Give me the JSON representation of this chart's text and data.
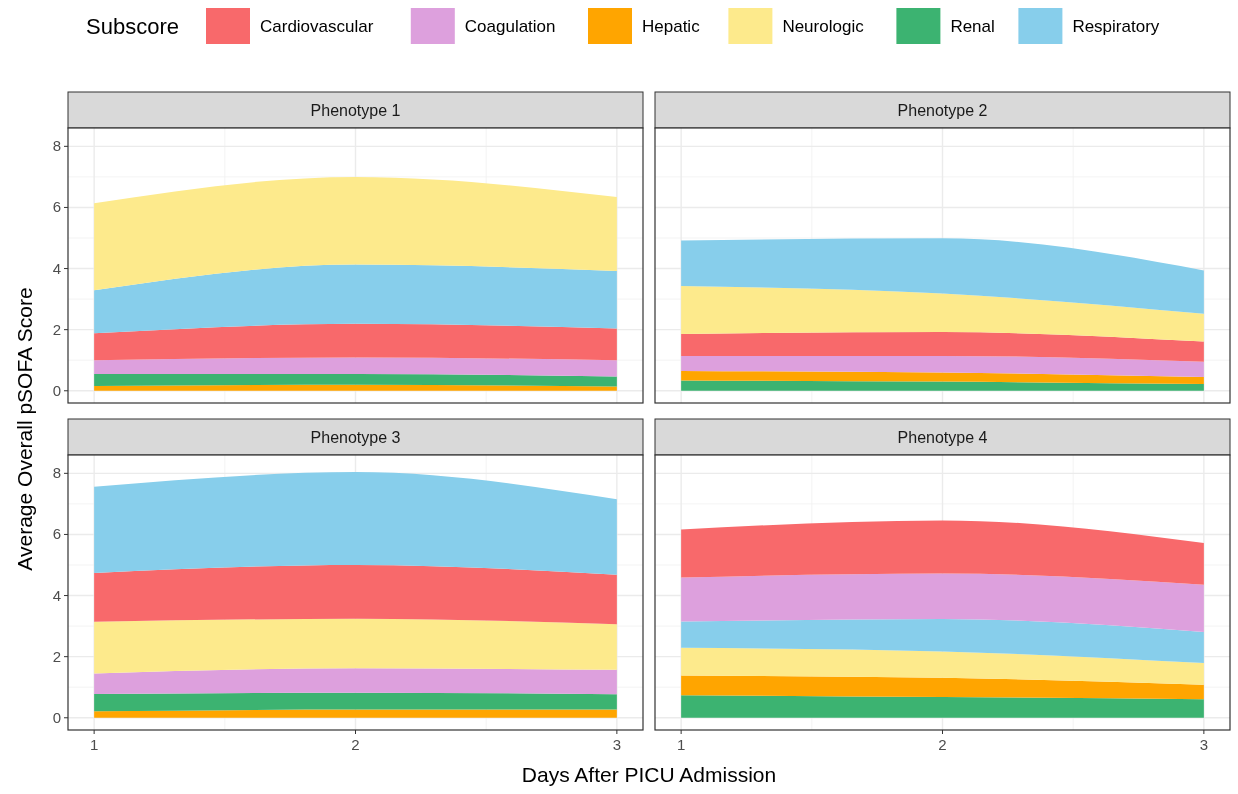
{
  "chart_data": [
    {
      "type": "area",
      "stacked": true,
      "title": "Phenotype 1",
      "ylabel": "Average Overall pSOFA Score",
      "legend_title": "Subscore",
      "legend": "top",
      "grid": true,
      "tick_labels": "y",
      "x": [
        1,
        2,
        3
      ],
      "xlim": [
        0.9,
        3.1
      ],
      "xticks": [
        1,
        2,
        3
      ],
      "ylim": [
        -0.4,
        8.6
      ],
      "yticks": [
        0,
        2,
        4,
        6,
        8
      ],
      "series": [
        {
          "name": "Hepatic",
          "color": "#ffa500",
          "values": [
            0.16,
            0.2,
            0.14
          ]
        },
        {
          "name": "Renal",
          "color": "#3cb371",
          "values": [
            0.39,
            0.35,
            0.33
          ]
        },
        {
          "name": "Coagulation",
          "color": "#dda0dd",
          "values": [
            0.45,
            0.54,
            0.53
          ]
        },
        {
          "name": "Cardiovascular",
          "color": "#f8696b",
          "values": [
            0.88,
            1.1,
            1.04
          ]
        },
        {
          "name": "Respiratory",
          "color": "#87ceeb",
          "values": [
            1.41,
            1.94,
            1.88
          ]
        },
        {
          "name": "Neurologic",
          "color": "#fdea8c",
          "values": [
            2.85,
            2.87,
            2.42
          ]
        }
      ]
    },
    {
      "type": "area",
      "stacked": true,
      "title": "Phenotype 2",
      "grid": true,
      "tick_labels": false,
      "x": [
        1,
        2,
        3
      ],
      "xlim": [
        0.9,
        3.1
      ],
      "xticks": [
        1,
        2,
        3
      ],
      "ylim": [
        -0.4,
        8.6
      ],
      "yticks": [
        0,
        2,
        4,
        6,
        8
      ],
      "series": [
        {
          "color": "#3cb371",
          "values": [
            0.34,
            0.3,
            0.22
          ]
        },
        {
          "color": "#ffa500",
          "values": [
            0.31,
            0.3,
            0.23
          ]
        },
        {
          "color": "#dda0dd",
          "values": [
            0.49,
            0.54,
            0.5
          ]
        },
        {
          "color": "#f8696b",
          "values": [
            0.72,
            0.78,
            0.66
          ]
        },
        {
          "color": "#fdea8c",
          "values": [
            1.57,
            1.26,
            0.91
          ]
        },
        {
          "color": "#87ceeb",
          "values": [
            1.49,
            1.81,
            1.42
          ]
        }
      ]
    },
    {
      "type": "area",
      "stacked": true,
      "title": "Phenotype 3",
      "xlabel": "Days After PICU Admission",
      "grid": true,
      "x": [
        1,
        2,
        3
      ],
      "xlim": [
        0.9,
        3.1
      ],
      "xticks": [
        1,
        2,
        3
      ],
      "ylim": [
        -0.4,
        8.6
      ],
      "yticks": [
        0,
        2,
        4,
        6,
        8
      ],
      "series": [
        {
          "color": "#ffa500",
          "values": [
            0.21,
            0.27,
            0.27
          ]
        },
        {
          "color": "#3cb371",
          "values": [
            0.57,
            0.55,
            0.5
          ]
        },
        {
          "color": "#dda0dd",
          "values": [
            0.67,
            0.8,
            0.8
          ]
        },
        {
          "color": "#fdea8c",
          "values": [
            1.69,
            1.62,
            1.49
          ]
        },
        {
          "color": "#f8696b",
          "values": [
            1.6,
            1.76,
            1.62
          ]
        },
        {
          "color": "#87ceeb",
          "values": [
            2.82,
            3.04,
            2.47
          ]
        }
      ]
    },
    {
      "type": "area",
      "stacked": true,
      "title": "Phenotype 4",
      "grid": true,
      "tick_labels": "x",
      "x": [
        1,
        2,
        3
      ],
      "xlim": [
        0.9,
        3.1
      ],
      "xticks": [
        1,
        2,
        3
      ],
      "ylim": [
        -0.4,
        8.6
      ],
      "yticks": [
        0,
        2,
        4,
        6,
        8
      ],
      "series": [
        {
          "color": "#3cb371",
          "values": [
            0.74,
            0.68,
            0.61
          ]
        },
        {
          "color": "#ffa500",
          "values": [
            0.64,
            0.63,
            0.47
          ]
        },
        {
          "color": "#fdea8c",
          "values": [
            0.91,
            0.86,
            0.71
          ]
        },
        {
          "color": "#87ceeb",
          "values": [
            0.86,
            1.06,
            1.02
          ]
        },
        {
          "color": "#dda0dd",
          "values": [
            1.44,
            1.49,
            1.54
          ]
        },
        {
          "color": "#f8696b",
          "values": [
            1.57,
            1.74,
            1.37
          ]
        }
      ]
    }
  ]
}
